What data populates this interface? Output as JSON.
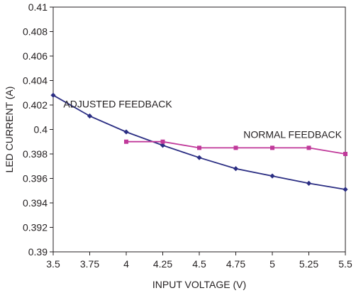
{
  "chart_data": {
    "type": "line",
    "title": "",
    "xlabel": "INPUT VOLTAGE (V)",
    "ylabel": "LED CURRENT (A)",
    "xlim": [
      3.5,
      5.5
    ],
    "ylim": [
      0.39,
      0.41
    ],
    "x_ticks": [
      "3.5",
      "3.75",
      "4",
      "4.25",
      "4.5",
      "4.75",
      "5",
      "5.25",
      "5.5"
    ],
    "y_ticks": [
      "0.39",
      "0.392",
      "0.394",
      "0.396",
      "0.398",
      "0.4",
      "0.402",
      "0.404",
      "0.406",
      "0.408",
      "0.41"
    ],
    "grid": false,
    "legend": "none",
    "series": [
      {
        "label": "ADJUSTED FEEDBACK",
        "color": "#2b2e83",
        "marker": "diamond",
        "x": [
          3.5,
          3.75,
          4,
          4.25,
          4.5,
          4.75,
          5,
          5.25,
          5.5
        ],
        "y": [
          0.4028,
          0.4011,
          0.3998,
          0.3987,
          0.3977,
          0.3968,
          0.3962,
          0.3956,
          0.3951
        ]
      },
      {
        "label": "NORMAL FEEDBACK",
        "color": "#c0399a",
        "marker": "square",
        "x": [
          4,
          4.25,
          4.5,
          4.75,
          5,
          5.25,
          5.5
        ],
        "y": [
          0.399,
          0.399,
          0.3985,
          0.3985,
          0.3985,
          0.3985,
          0.398
        ]
      }
    ]
  }
}
